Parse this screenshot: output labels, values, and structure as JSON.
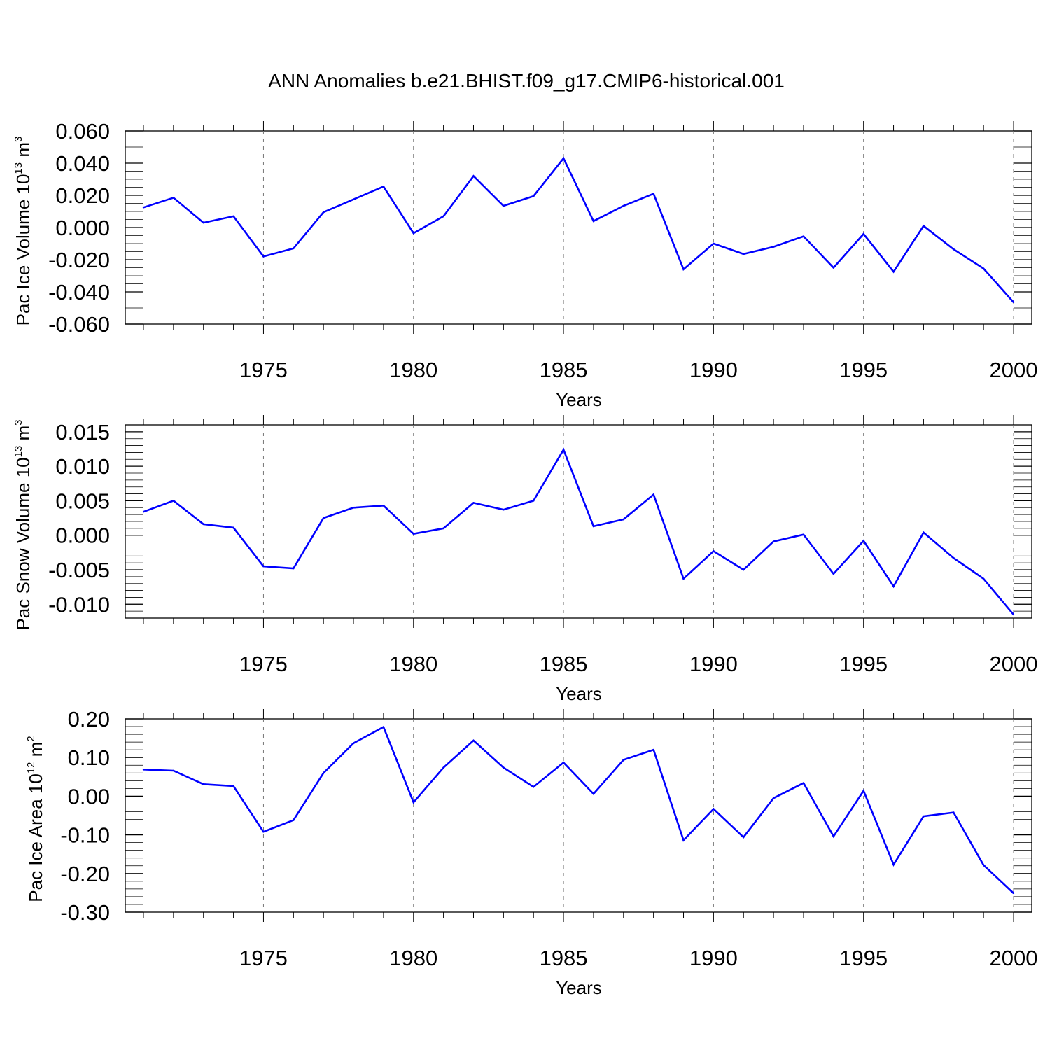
{
  "title": "ANN Anomalies b.e21.BHIST.f09_g17.CMIP6-historical.001",
  "colors": {
    "line": "#0000ff",
    "axis": "#000000",
    "grid": "#777777"
  },
  "chart_data": [
    {
      "type": "line",
      "ylabel_text": "Pac Ice Volume 10",
      "ylabel_exp": "13",
      "ylabel_unit": "m",
      "ylabel_unit_exp": "3",
      "xlabel": "Years",
      "xlim": [
        1971,
        2000
      ],
      "ylim": [
        -0.06,
        0.06
      ],
      "yticks": [
        -0.06,
        -0.04,
        -0.02,
        0.0,
        0.02,
        0.04,
        0.06
      ],
      "ytick_labels": [
        "-0.060",
        "-0.040",
        "-0.020",
        "0.000",
        "0.020",
        "0.040",
        "0.060"
      ],
      "ytick_step_minor": 0.005,
      "xticks": [
        1975,
        1980,
        1985,
        1990,
        1995,
        2000
      ],
      "xtick_labels": [
        "1975",
        "1980",
        "1985",
        "1990",
        "1995",
        "2000"
      ],
      "grid": "dashed vertical at major x ticks",
      "x": [
        1971,
        1972,
        1973,
        1974,
        1975,
        1976,
        1977,
        1978,
        1979,
        1980,
        1981,
        1982,
        1983,
        1984,
        1985,
        1986,
        1987,
        1988,
        1989,
        1990,
        1991,
        1992,
        1993,
        1994,
        1995,
        1996,
        1997,
        1998,
        1999,
        2000
      ],
      "series": [
        {
          "values": [
            0.0125,
            0.0185,
            0.003,
            0.007,
            -0.018,
            -0.013,
            0.0095,
            0.0175,
            0.0255,
            -0.0035,
            0.007,
            0.032,
            0.0135,
            0.0195,
            0.043,
            0.004,
            0.0135,
            0.021,
            -0.026,
            -0.01,
            -0.0165,
            -0.012,
            -0.0055,
            -0.025,
            -0.004,
            -0.0275,
            0.001,
            -0.0135,
            -0.0255,
            -0.0465
          ]
        }
      ]
    },
    {
      "type": "line",
      "ylabel_text": "Pac Snow Volume 10",
      "ylabel_exp": "13",
      "ylabel_unit": "m",
      "ylabel_unit_exp": "3",
      "xlabel": "Years",
      "xlim": [
        1971,
        2000
      ],
      "ylim": [
        -0.012,
        0.016
      ],
      "yticks": [
        -0.01,
        -0.005,
        0.0,
        0.005,
        0.01,
        0.015
      ],
      "ytick_labels": [
        "-0.010",
        "-0.005",
        "0.000",
        "0.005",
        "0.010",
        "0.015"
      ],
      "ytick_step_minor": 0.001,
      "xticks": [
        1975,
        1980,
        1985,
        1990,
        1995,
        2000
      ],
      "xtick_labels": [
        "1975",
        "1980",
        "1985",
        "1990",
        "1995",
        "2000"
      ],
      "grid": "dashed vertical at major x ticks",
      "x": [
        1971,
        1972,
        1973,
        1974,
        1975,
        1976,
        1977,
        1978,
        1979,
        1980,
        1981,
        1982,
        1983,
        1984,
        1985,
        1986,
        1987,
        1988,
        1989,
        1990,
        1991,
        1992,
        1993,
        1994,
        1995,
        1996,
        1997,
        1998,
        1999,
        2000
      ],
      "series": [
        {
          "values": [
            0.0034,
            0.005,
            0.0016,
            0.0011,
            -0.0045,
            -0.0048,
            0.0025,
            0.004,
            0.0043,
            0.0002,
            0.001,
            0.0047,
            0.0037,
            0.005,
            0.0124,
            0.0013,
            0.0023,
            0.0059,
            -0.0063,
            -0.0023,
            -0.005,
            -0.0009,
            0.0001,
            -0.0056,
            -0.0008,
            -0.0074,
            0.0004,
            -0.0033,
            -0.0063,
            -0.0115
          ]
        }
      ]
    },
    {
      "type": "line",
      "ylabel_text": "Pac Ice Area 10",
      "ylabel_exp": "12",
      "ylabel_unit": "m",
      "ylabel_unit_exp": "2",
      "xlabel": "Years",
      "xlim": [
        1971,
        2000
      ],
      "ylim": [
        -0.3,
        0.2
      ],
      "yticks": [
        -0.3,
        -0.2,
        -0.1,
        0.0,
        0.1,
        0.2
      ],
      "ytick_labels": [
        "-0.30",
        "-0.20",
        "-0.10",
        "0.00",
        "0.10",
        "0.20"
      ],
      "ytick_step_minor": 0.02,
      "xticks": [
        1975,
        1980,
        1985,
        1990,
        1995,
        2000
      ],
      "xtick_labels": [
        "1975",
        "1980",
        "1985",
        "1990",
        "1995",
        "2000"
      ],
      "grid": "dashed vertical at major x ticks",
      "x": [
        1971,
        1972,
        1973,
        1974,
        1975,
        1976,
        1977,
        1978,
        1979,
        1980,
        1981,
        1982,
        1983,
        1984,
        1985,
        1986,
        1987,
        1988,
        1989,
        1990,
        1991,
        1992,
        1993,
        1994,
        1995,
        1996,
        1997,
        1998,
        1999,
        2000
      ],
      "series": [
        {
          "values": [
            0.069,
            0.066,
            0.031,
            0.026,
            -0.092,
            -0.062,
            0.06,
            0.137,
            0.179,
            -0.016,
            0.074,
            0.144,
            0.074,
            0.024,
            0.087,
            0.006,
            0.094,
            0.12,
            -0.114,
            -0.033,
            -0.106,
            -0.005,
            0.034,
            -0.104,
            0.014,
            -0.177,
            -0.052,
            -0.042,
            -0.178,
            -0.251
          ]
        }
      ]
    }
  ]
}
